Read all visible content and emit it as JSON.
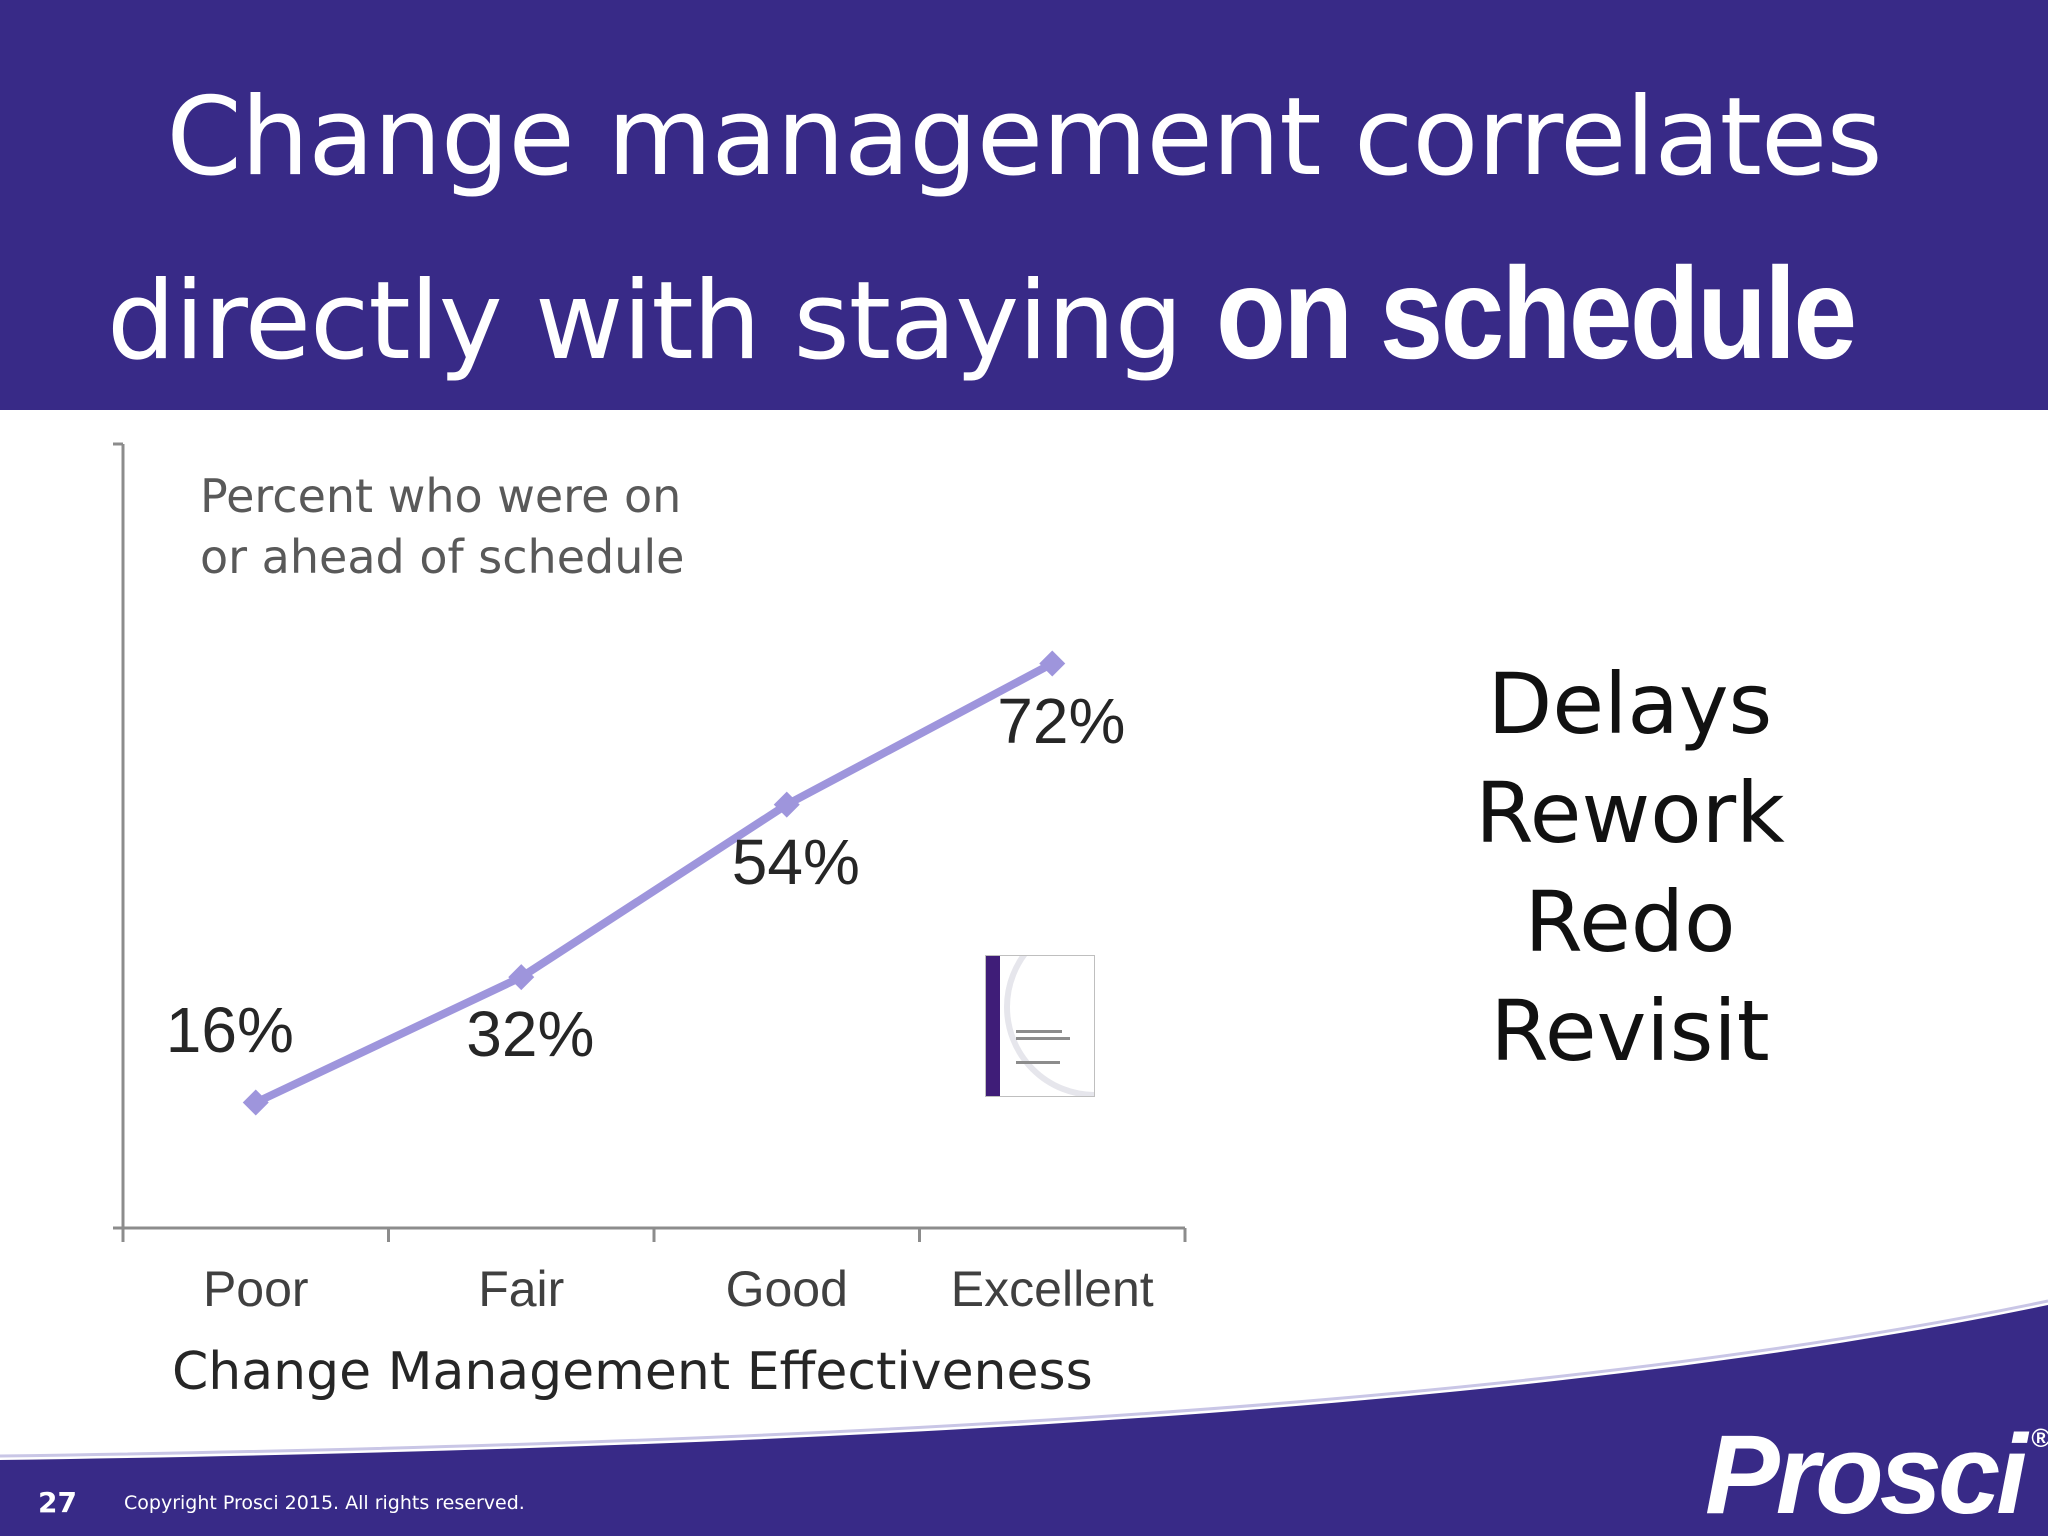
{
  "slide": {
    "title_line1": "Change management correlates",
    "title_line2_prefix": "directly with staying ",
    "title_line2_emphasis": "on schedule",
    "side_list": [
      "Delays",
      "Rework",
      "Redo",
      "Revisit"
    ],
    "page_number": "27",
    "copyright": "Copyright Prosci 2015. All rights reserved.",
    "logo_text": "Prosci",
    "logo_mark": "®",
    "colors": {
      "header": "#382a87",
      "line": "#9e95dc",
      "footer": "#382a87"
    }
  },
  "chart_data": {
    "type": "line",
    "ylabel_line1": "Percent who were on",
    "ylabel_line2": "or ahead of schedule",
    "xlabel": "Change Management Effectiveness",
    "categories": [
      "Poor",
      "Fair",
      "Good",
      "Excellent"
    ],
    "values": [
      16,
      32,
      54,
      72
    ],
    "data_labels": [
      "16%",
      "32%",
      "54%",
      "72%"
    ],
    "ylim": [
      0,
      100
    ],
    "grid": false,
    "legend": "none"
  }
}
